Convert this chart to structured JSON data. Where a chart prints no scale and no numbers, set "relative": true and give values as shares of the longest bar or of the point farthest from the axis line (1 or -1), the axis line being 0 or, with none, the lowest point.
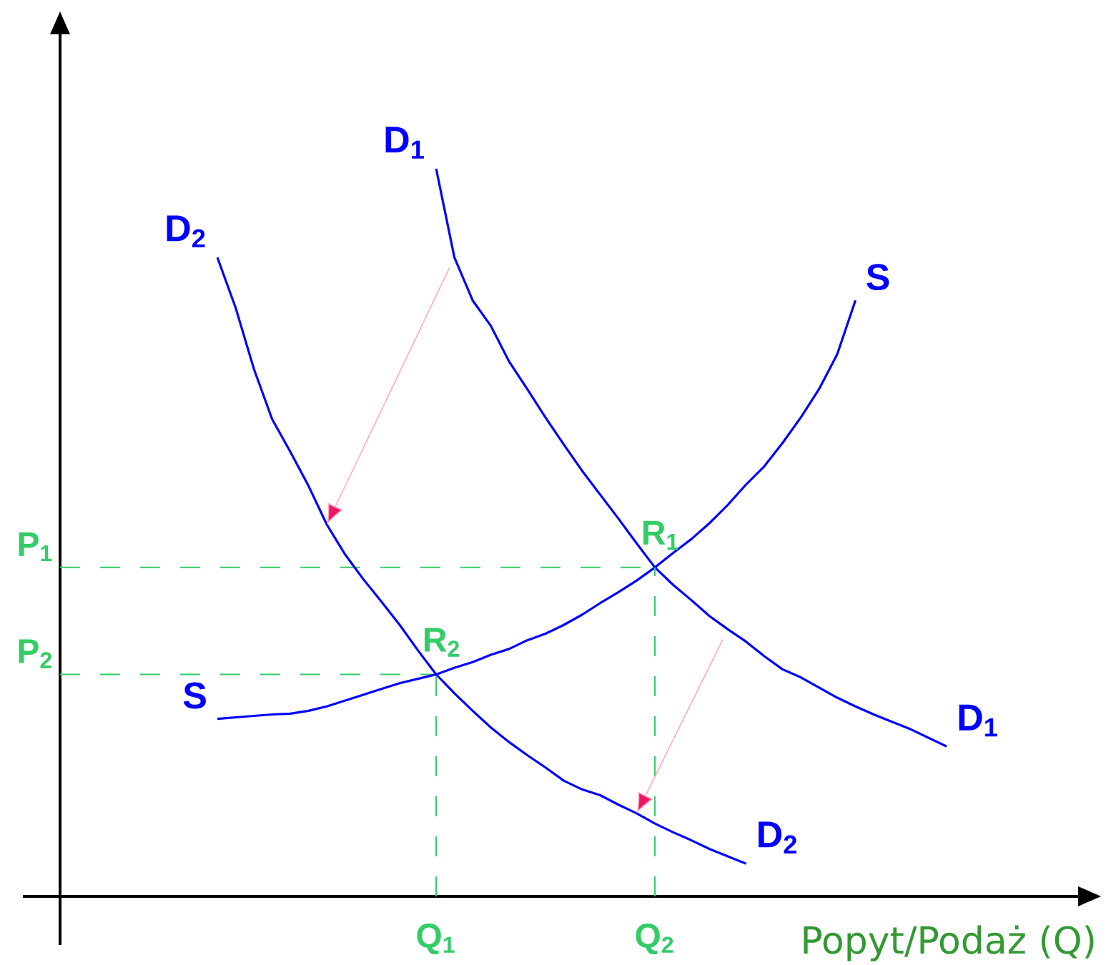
{
  "chart_data": {
    "type": "line",
    "relative": true,
    "xlabel": "Popyt/Podaż (Q)",
    "marker": "none",
    "line_style": "solid",
    "categories": [
      null,
      null,
      null,
      null,
      null,
      null,
      null,
      null,
      null,
      null,
      null,
      null,
      "Q$_{1}$",
      null,
      null,
      null,
      null,
      null,
      null,
      null,
      null,
      null,
      null,
      null,
      "Q$_{2}$",
      null,
      null,
      null,
      null,
      null,
      null,
      null,
      null,
      null,
      null,
      null,
      null,
      null,
      null,
      null,
      null
    ],
    "series": [
      {
        "name": "D$_{1}$",
        "color": "#0000ff",
        "values": [
          null,
          null,
          null,
          null,
          null,
          null,
          null,
          null,
          null,
          null,
          null,
          null,
          1.0,
          0.878,
          0.819,
          0.784,
          0.735,
          0.697,
          0.658,
          0.621,
          0.585,
          0.552,
          0.519,
          0.485,
          0.452,
          0.428,
          0.407,
          0.385,
          0.367,
          0.35,
          0.33,
          0.312,
          0.301,
          0.287,
          0.273,
          0.261,
          0.25,
          0.24,
          0.23,
          0.218,
          0.206
        ]
      },
      {
        "name": "D$_{2}$",
        "color": "#0000ff",
        "values": [
          0.878,
          0.809,
          0.725,
          0.656,
          0.611,
          0.564,
          0.511,
          0.47,
          0.436,
          0.405,
          0.373,
          0.338,
          0.305,
          0.279,
          0.255,
          0.232,
          0.212,
          0.194,
          0.177,
          0.159,
          0.147,
          0.139,
          0.126,
          0.114,
          0.1,
          0.088,
          0.077,
          0.065,
          0.055,
          0.045,
          null,
          null,
          null,
          null,
          null,
          null,
          null,
          null,
          null,
          null,
          null
        ]
      },
      {
        "name": "S",
        "color": "#0000ff",
        "values": [
          0.244,
          0.246,
          0.248,
          0.25,
          0.251,
          0.255,
          0.261,
          0.269,
          0.277,
          0.285,
          0.293,
          0.299,
          0.305,
          0.314,
          0.322,
          0.332,
          0.34,
          0.352,
          0.361,
          0.373,
          0.387,
          0.403,
          0.418,
          0.434,
          0.452,
          0.472,
          0.491,
          0.513,
          0.538,
          0.566,
          0.591,
          0.623,
          0.658,
          0.697,
          0.745,
          0.819,
          null,
          null,
          null,
          null,
          null
        ]
      }
    ],
    "annotations": [
      {
        "text": "R$_{1}$",
        "y": 0.452
      },
      {
        "text": "R$_{2}$",
        "y": 0.305
      }
    ],
    "ref_lines": [
      {
        "axis": "y",
        "value": 0.452,
        "label": "P$_{1}$",
        "color": "#33cc66",
        "line_style": "dashed"
      },
      {
        "axis": "y",
        "value": 0.305,
        "label": "P$_{2}$",
        "color": "#33cc66",
        "line_style": "dashed"
      }
    ]
  }
}
